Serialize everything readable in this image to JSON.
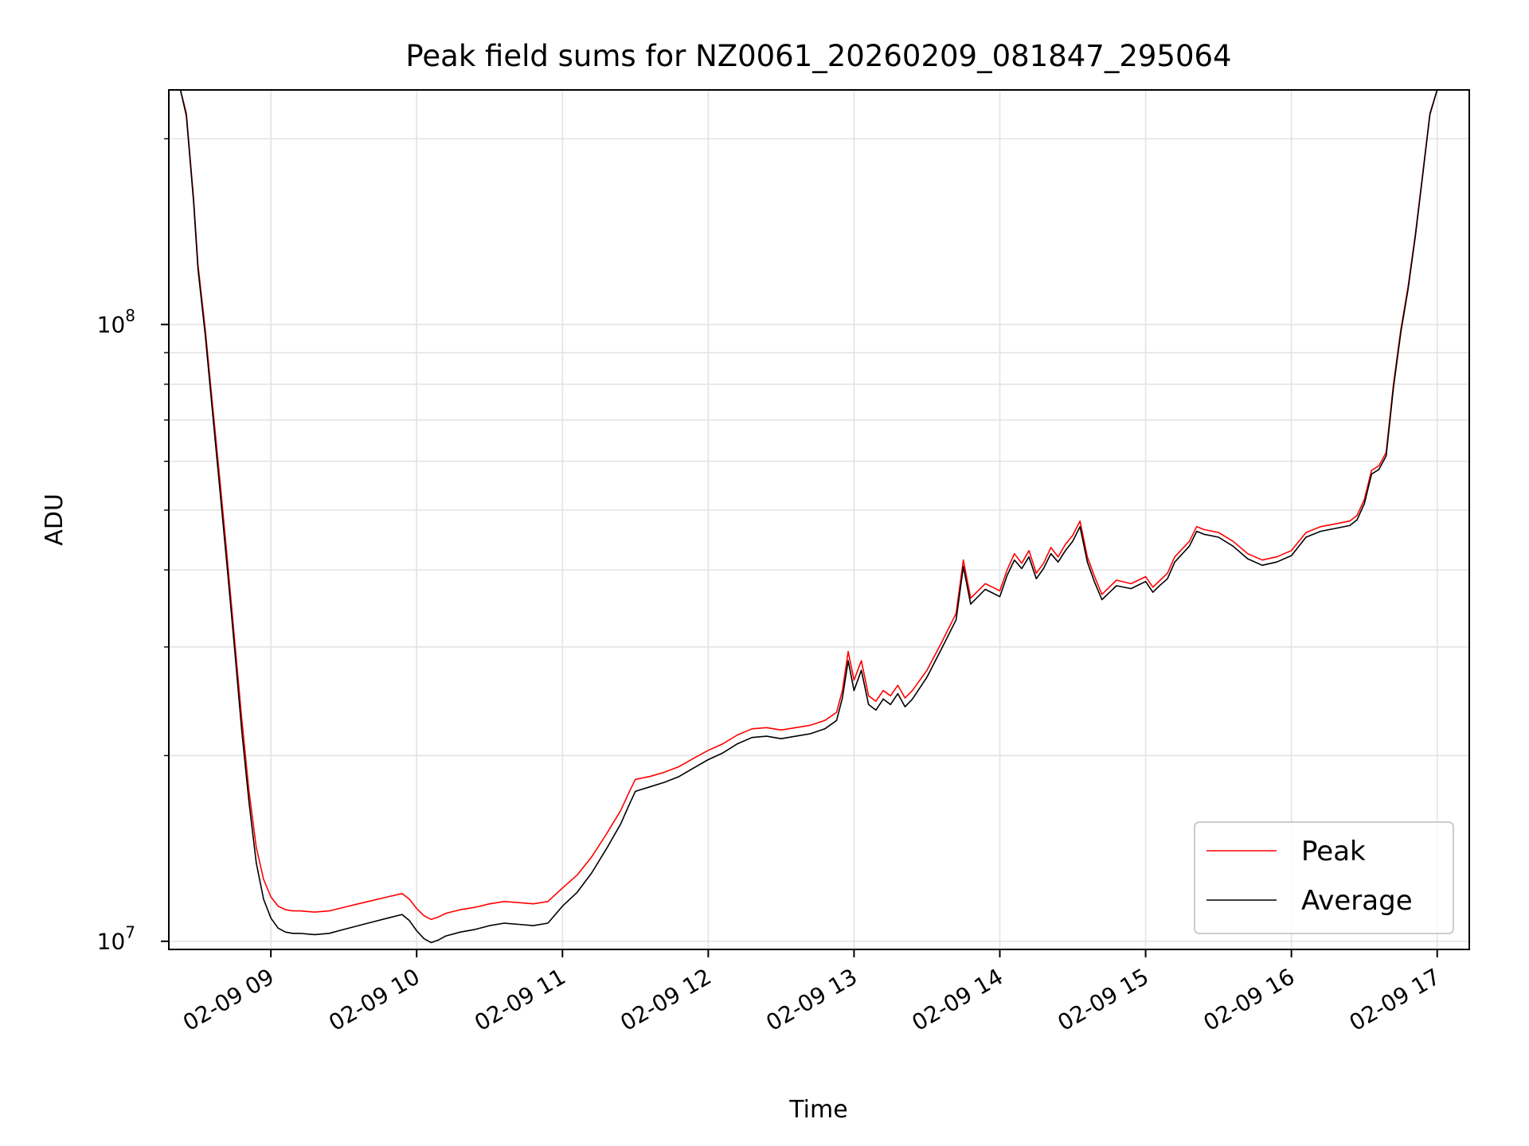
{
  "chart_data": {
    "type": "line",
    "title": "Peak field sums for NZ0061_20260209_081847_295064",
    "xlabel": "Time",
    "ylabel": "ADU",
    "y_scale": "log",
    "ylim": [
      9700000,
      240000000
    ],
    "xlim": [
      8.3,
      17.22
    ],
    "grid": true,
    "legend_position": "lower-right",
    "x_ticks": [
      {
        "value": 9,
        "label": "02-09 09"
      },
      {
        "value": 10,
        "label": "02-09 10"
      },
      {
        "value": 11,
        "label": "02-09 11"
      },
      {
        "value": 12,
        "label": "02-09 12"
      },
      {
        "value": 13,
        "label": "02-09 13"
      },
      {
        "value": 14,
        "label": "02-09 14"
      },
      {
        "value": 15,
        "label": "02-09 15"
      },
      {
        "value": 16,
        "label": "02-09 16"
      },
      {
        "value": 17,
        "label": "02-09 17"
      }
    ],
    "y_ticks": [
      {
        "value": 10000000,
        "base": "10",
        "exp": "7"
      },
      {
        "value": 100000000,
        "base": "10",
        "exp": "8"
      }
    ],
    "series": [
      {
        "name": "Peak",
        "color": "#ff0000",
        "x": [
          8.38,
          8.42,
          8.47,
          8.5,
          8.55,
          8.6,
          8.65,
          8.7,
          8.75,
          8.8,
          8.85,
          8.9,
          8.95,
          9.0,
          9.05,
          9.1,
          9.15,
          9.2,
          9.3,
          9.4,
          9.5,
          9.6,
          9.7,
          9.8,
          9.9,
          9.95,
          10.0,
          10.05,
          10.1,
          10.15,
          10.2,
          10.3,
          10.4,
          10.5,
          10.6,
          10.7,
          10.8,
          10.9,
          11.0,
          11.1,
          11.2,
          11.3,
          11.4,
          11.45,
          11.5,
          11.6,
          11.7,
          11.8,
          11.9,
          12.0,
          12.1,
          12.2,
          12.3,
          12.4,
          12.5,
          12.6,
          12.7,
          12.8,
          12.88,
          12.92,
          12.96,
          13.0,
          13.05,
          13.1,
          13.15,
          13.2,
          13.25,
          13.3,
          13.35,
          13.4,
          13.5,
          13.6,
          13.7,
          13.75,
          13.8,
          13.9,
          13.95,
          14.0,
          14.05,
          14.1,
          14.15,
          14.2,
          14.25,
          14.3,
          14.35,
          14.4,
          14.45,
          14.5,
          14.55,
          14.6,
          14.65,
          14.7,
          14.8,
          14.9,
          15.0,
          15.05,
          15.1,
          15.15,
          15.2,
          15.3,
          15.35,
          15.4,
          15.5,
          15.6,
          15.7,
          15.8,
          15.9,
          16.0,
          16.1,
          16.2,
          16.3,
          16.4,
          16.45,
          16.5,
          16.55,
          16.6,
          16.65,
          16.7,
          16.75,
          16.8,
          16.85,
          16.9,
          16.95,
          17.0
        ],
        "values": [
          240000000,
          220000000,
          160000000,
          125000000,
          98000000,
          74000000,
          56000000,
          42000000,
          31000000,
          23000000,
          17500000,
          14200000,
          12600000,
          11800000,
          11400000,
          11250000,
          11200000,
          11200000,
          11150000,
          11200000,
          11350000,
          11500000,
          11650000,
          11800000,
          11950000,
          11700000,
          11300000,
          11000000,
          10850000,
          10950000,
          11100000,
          11250000,
          11350000,
          11500000,
          11600000,
          11550000,
          11500000,
          11600000,
          12200000,
          12800000,
          13700000,
          14900000,
          16300000,
          17300000,
          18300000,
          18500000,
          18800000,
          19200000,
          19800000,
          20400000,
          20900000,
          21600000,
          22100000,
          22200000,
          22000000,
          22200000,
          22400000,
          22800000,
          23500000,
          25500000,
          29500000,
          26500000,
          28500000,
          25000000,
          24500000,
          25500000,
          25000000,
          26000000,
          24800000,
          25500000,
          27500000,
          30500000,
          34000000,
          41500000,
          36000000,
          38000000,
          37500000,
          37000000,
          40000000,
          42500000,
          41000000,
          43000000,
          39500000,
          41000000,
          43500000,
          42000000,
          44000000,
          45500000,
          48000000,
          42000000,
          39000000,
          36500000,
          38500000,
          38000000,
          39000000,
          37500000,
          38500000,
          39500000,
          42000000,
          44500000,
          47000000,
          46500000,
          46000000,
          44500000,
          42500000,
          41500000,
          42000000,
          43000000,
          46000000,
          47000000,
          47500000,
          48000000,
          49000000,
          52000000,
          58000000,
          59000000,
          62000000,
          80000000,
          98000000,
          115000000,
          140000000,
          175000000,
          220000000,
          240000000
        ]
      },
      {
        "name": "Average",
        "color": "#000000",
        "x": [
          8.38,
          8.42,
          8.47,
          8.5,
          8.55,
          8.6,
          8.65,
          8.7,
          8.75,
          8.8,
          8.85,
          8.9,
          8.95,
          9.0,
          9.05,
          9.1,
          9.15,
          9.2,
          9.3,
          9.4,
          9.5,
          9.6,
          9.7,
          9.8,
          9.9,
          9.95,
          10.0,
          10.05,
          10.1,
          10.15,
          10.2,
          10.3,
          10.4,
          10.5,
          10.6,
          10.7,
          10.8,
          10.9,
          11.0,
          11.1,
          11.2,
          11.3,
          11.4,
          11.45,
          11.5,
          11.6,
          11.7,
          11.8,
          11.9,
          12.0,
          12.1,
          12.2,
          12.3,
          12.4,
          12.5,
          12.6,
          12.7,
          12.8,
          12.88,
          12.92,
          12.96,
          13.0,
          13.05,
          13.1,
          13.15,
          13.2,
          13.25,
          13.3,
          13.35,
          13.4,
          13.5,
          13.6,
          13.7,
          13.75,
          13.8,
          13.9,
          13.95,
          14.0,
          14.05,
          14.1,
          14.15,
          14.2,
          14.25,
          14.3,
          14.35,
          14.4,
          14.45,
          14.5,
          14.55,
          14.6,
          14.65,
          14.7,
          14.8,
          14.9,
          15.0,
          15.05,
          15.1,
          15.15,
          15.2,
          15.3,
          15.35,
          15.4,
          15.5,
          15.6,
          15.7,
          15.8,
          15.9,
          16.0,
          16.1,
          16.2,
          16.3,
          16.4,
          16.45,
          16.5,
          16.55,
          16.6,
          16.65,
          16.7,
          16.75,
          16.8,
          16.85,
          16.9,
          16.95,
          17.0
        ],
        "values": [
          240000000,
          218000000,
          158000000,
          123000000,
          96000000,
          72000000,
          54000000,
          40500000,
          30000000,
          22000000,
          16800000,
          13400000,
          11700000,
          10900000,
          10500000,
          10350000,
          10300000,
          10300000,
          10250000,
          10300000,
          10450000,
          10600000,
          10750000,
          10900000,
          11050000,
          10800000,
          10400000,
          10100000,
          9950000,
          10050000,
          10200000,
          10350000,
          10450000,
          10600000,
          10700000,
          10650000,
          10600000,
          10700000,
          11400000,
          12000000,
          12900000,
          14100000,
          15500000,
          16500000,
          17500000,
          17800000,
          18100000,
          18500000,
          19100000,
          19700000,
          20200000,
          20900000,
          21400000,
          21500000,
          21300000,
          21500000,
          21700000,
          22100000,
          22800000,
          24800000,
          28500000,
          25500000,
          27500000,
          24200000,
          23700000,
          24700000,
          24200000,
          25200000,
          24000000,
          24700000,
          26800000,
          29800000,
          33200000,
          40500000,
          35200000,
          37200000,
          36700000,
          36200000,
          39200000,
          41500000,
          40200000,
          42000000,
          38700000,
          40200000,
          42500000,
          41200000,
          43000000,
          44500000,
          47000000,
          41200000,
          38200000,
          35800000,
          37700000,
          37300000,
          38300000,
          36800000,
          37800000,
          38700000,
          41200000,
          43700000,
          46200000,
          45700000,
          45200000,
          43700000,
          41700000,
          40700000,
          41200000,
          42200000,
          45200000,
          46200000,
          46700000,
          47200000,
          48200000,
          51200000,
          57200000,
          58200000,
          61200000,
          79000000,
          97000000,
          114000000,
          139000000,
          174000000,
          219000000,
          240000000
        ]
      }
    ]
  }
}
